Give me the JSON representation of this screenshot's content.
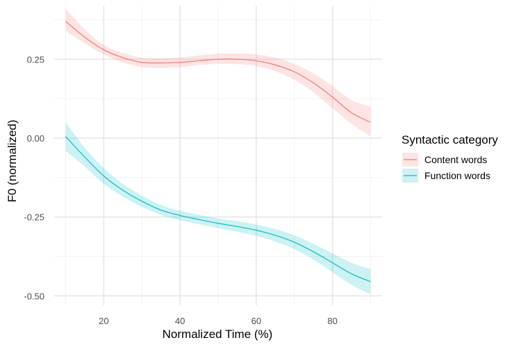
{
  "chart_data": {
    "type": "line",
    "xlabel": "Normalized Time (%)",
    "ylabel": "F0 (normalized)",
    "xlim": [
      7,
      93
    ],
    "ylim": [
      -0.53,
      0.42
    ],
    "x_ticks": [
      20,
      40,
      60,
      80
    ],
    "x_tick_labels": [
      "20",
      "40",
      "60",
      "80"
    ],
    "x_minor_ticks": [
      10,
      30,
      50,
      70,
      90
    ],
    "y_ticks": [
      0.25,
      0.0,
      -0.25,
      -0.5
    ],
    "y_tick_labels": [
      "0.25",
      "0.00",
      "-0.25",
      "-0.50"
    ],
    "y_minor_ticks": [
      0.375,
      0.125,
      -0.125,
      -0.375
    ],
    "grid": true,
    "legend": {
      "title": "Syntactic category",
      "placement": "right"
    },
    "series": [
      {
        "name": "Content words",
        "color": "#F8766D",
        "ribbon_color": "#F8766D",
        "x": [
          10,
          15,
          20,
          25,
          30,
          35,
          40,
          45,
          50,
          55,
          60,
          65,
          70,
          75,
          80,
          85,
          90
        ],
        "y": [
          0.37,
          0.32,
          0.28,
          0.255,
          0.24,
          0.238,
          0.24,
          0.245,
          0.25,
          0.25,
          0.245,
          0.232,
          0.21,
          0.175,
          0.13,
          0.08,
          0.05
        ],
        "lower": [
          0.34,
          0.3,
          0.265,
          0.24,
          0.225,
          0.222,
          0.225,
          0.232,
          0.235,
          0.235,
          0.228,
          0.212,
          0.185,
          0.145,
          0.095,
          0.045,
          0.005
        ],
        "upper": [
          0.41,
          0.345,
          0.295,
          0.27,
          0.255,
          0.254,
          0.256,
          0.262,
          0.268,
          0.268,
          0.265,
          0.255,
          0.235,
          0.205,
          0.165,
          0.12,
          0.1
        ]
      },
      {
        "name": "Function words",
        "color": "#00BFC4",
        "ribbon_color": "#00BFC4",
        "x": [
          10,
          15,
          20,
          25,
          30,
          35,
          40,
          45,
          50,
          55,
          60,
          65,
          70,
          75,
          80,
          85,
          90
        ],
        "y": [
          0.005,
          -0.06,
          -0.12,
          -0.165,
          -0.2,
          -0.228,
          -0.245,
          -0.258,
          -0.27,
          -0.28,
          -0.292,
          -0.308,
          -0.33,
          -0.36,
          -0.395,
          -0.43,
          -0.455
        ],
        "lower": [
          -0.04,
          -0.09,
          -0.145,
          -0.185,
          -0.218,
          -0.243,
          -0.26,
          -0.273,
          -0.285,
          -0.297,
          -0.31,
          -0.328,
          -0.352,
          -0.385,
          -0.425,
          -0.465,
          -0.495
        ],
        "upper": [
          0.05,
          -0.03,
          -0.095,
          -0.145,
          -0.182,
          -0.212,
          -0.23,
          -0.243,
          -0.255,
          -0.263,
          -0.274,
          -0.288,
          -0.308,
          -0.335,
          -0.365,
          -0.395,
          -0.415
        ]
      }
    ]
  }
}
